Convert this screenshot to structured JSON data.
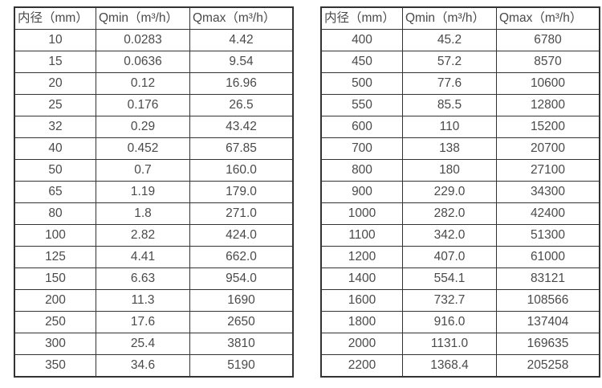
{
  "tables": [
    {
      "headers": [
        "内径（mm）",
        "Qmin（m³/h）",
        "Qmax（m³/h）"
      ],
      "rows": [
        [
          "10",
          "0.0283",
          "4.42"
        ],
        [
          "15",
          "0.0636",
          "9.54"
        ],
        [
          "20",
          "0.12",
          "16.96"
        ],
        [
          "25",
          "0.176",
          "26.5"
        ],
        [
          "32",
          "0.29",
          "43.42"
        ],
        [
          "40",
          "0.452",
          "67.85"
        ],
        [
          "50",
          "0.7",
          "160.0"
        ],
        [
          "65",
          "1.19",
          "179.0"
        ],
        [
          "80",
          "1.8",
          "271.0"
        ],
        [
          "100",
          "2.82",
          "424.0"
        ],
        [
          "125",
          "4.41",
          "662.0"
        ],
        [
          "150",
          "6.63",
          "954.0"
        ],
        [
          "200",
          "11.3",
          "1690"
        ],
        [
          "250",
          "17.6",
          "2650"
        ],
        [
          "300",
          "25.4",
          "3810"
        ],
        [
          "350",
          "34.6",
          "5190"
        ]
      ]
    },
    {
      "headers": [
        "内径（mm）",
        "Qmin（m³/h）",
        "Qmax（m³/h）"
      ],
      "rows": [
        [
          "400",
          "45.2",
          "6780"
        ],
        [
          "450",
          "57.2",
          "8570"
        ],
        [
          "500",
          "77.6",
          "10600"
        ],
        [
          "550",
          "85.5",
          "12800"
        ],
        [
          "600",
          "110",
          "15200"
        ],
        [
          "700",
          "138",
          "20700"
        ],
        [
          "800",
          "180",
          "27100"
        ],
        [
          "900",
          "229.0",
          "34300"
        ],
        [
          "1000",
          "282.0",
          "42400"
        ],
        [
          "1100",
          "342.0",
          "51300"
        ],
        [
          "1200",
          "407.0",
          "61000"
        ],
        [
          "1400",
          "554.1",
          "83121"
        ],
        [
          "1600",
          "732.7",
          "108566"
        ],
        [
          "1800",
          "916.0",
          "137404"
        ],
        [
          "2000",
          "1131.0",
          "169635"
        ],
        [
          "2200",
          "1368.4",
          "205258"
        ]
      ]
    }
  ],
  "colors": {
    "border": "#333333",
    "text": "#4a4a4a",
    "background": "#ffffff"
  }
}
